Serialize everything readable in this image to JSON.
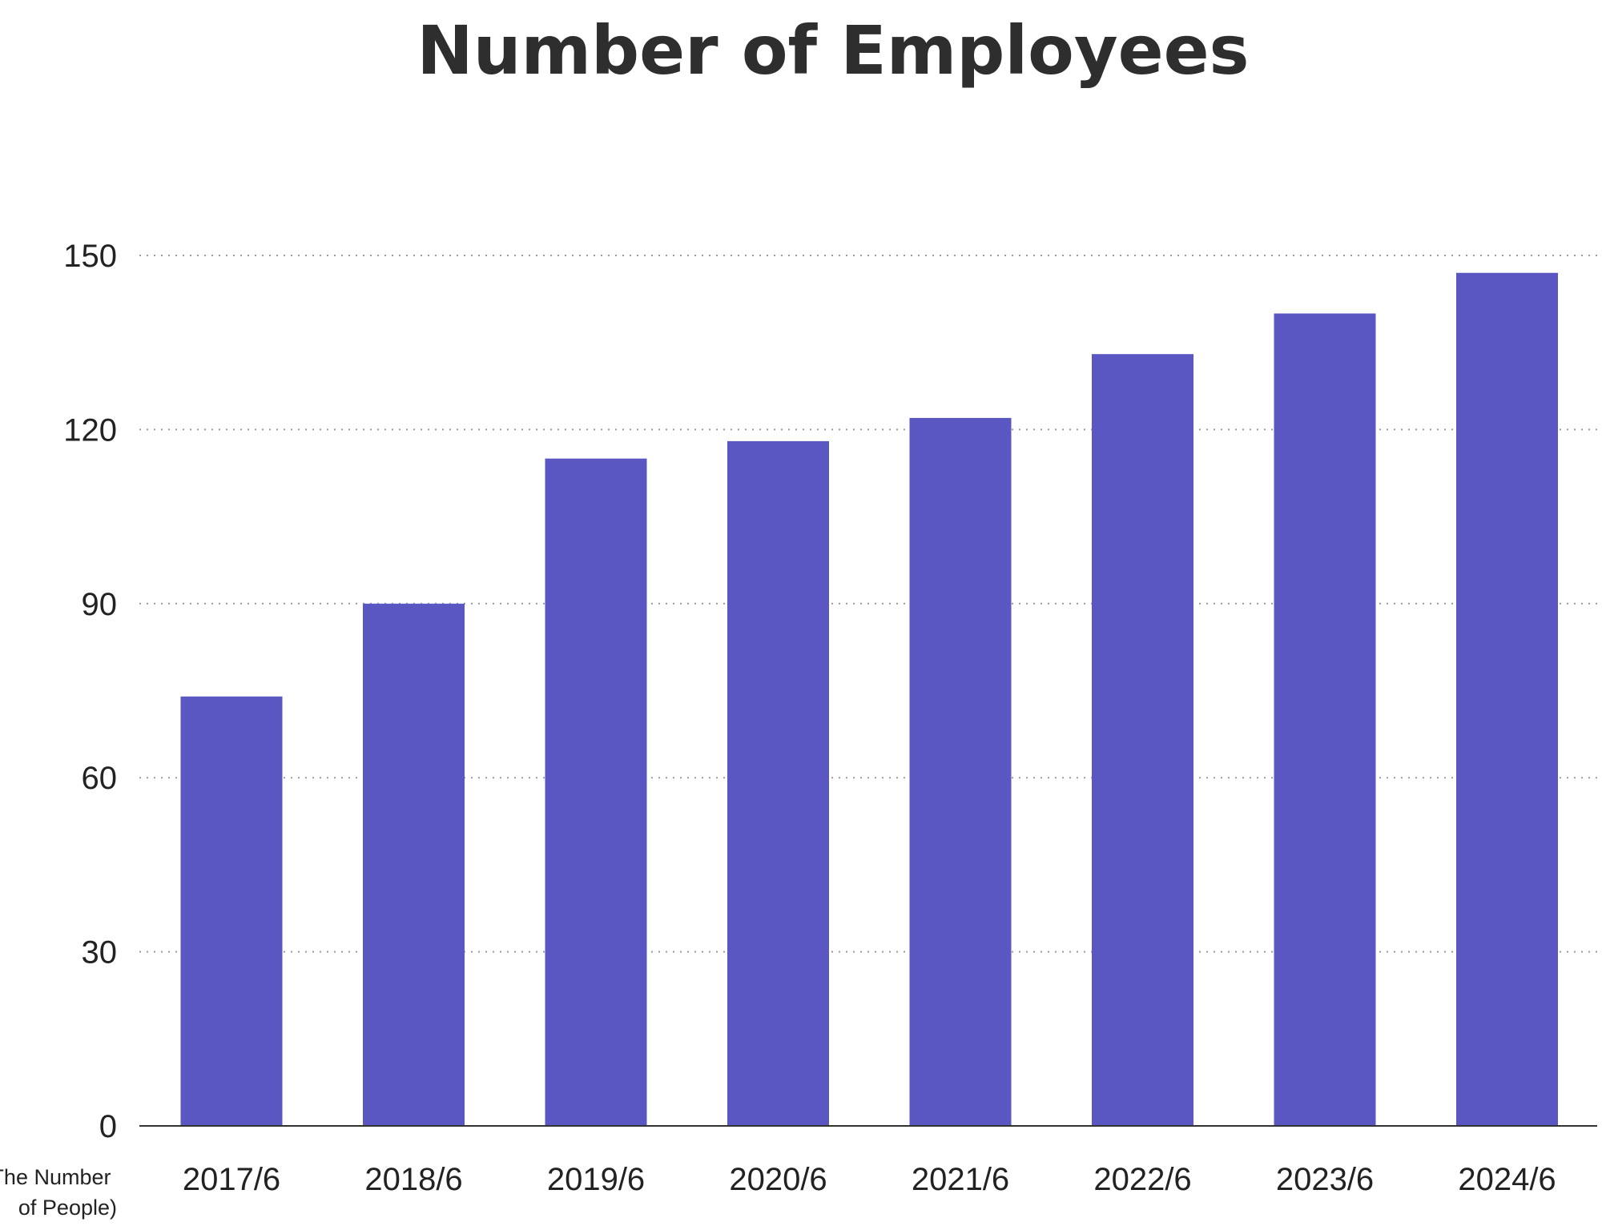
{
  "chart_data": {
    "type": "bar",
    "title": "Number of Employees",
    "unit_label": [
      "(The Number",
      "of People)"
    ],
    "categories": [
      "2017/6",
      "2018/6",
      "2019/6",
      "2020/6",
      "2021/6",
      "2022/6",
      "2023/6",
      "2024/6"
    ],
    "values": [
      74,
      90,
      115,
      118,
      122,
      133,
      140,
      147
    ],
    "yticks": [
      0,
      30,
      60,
      90,
      120,
      150
    ],
    "ylim": [
      0,
      150
    ],
    "grid": true,
    "legend": "none",
    "bar_color": "#5a57c2"
  }
}
